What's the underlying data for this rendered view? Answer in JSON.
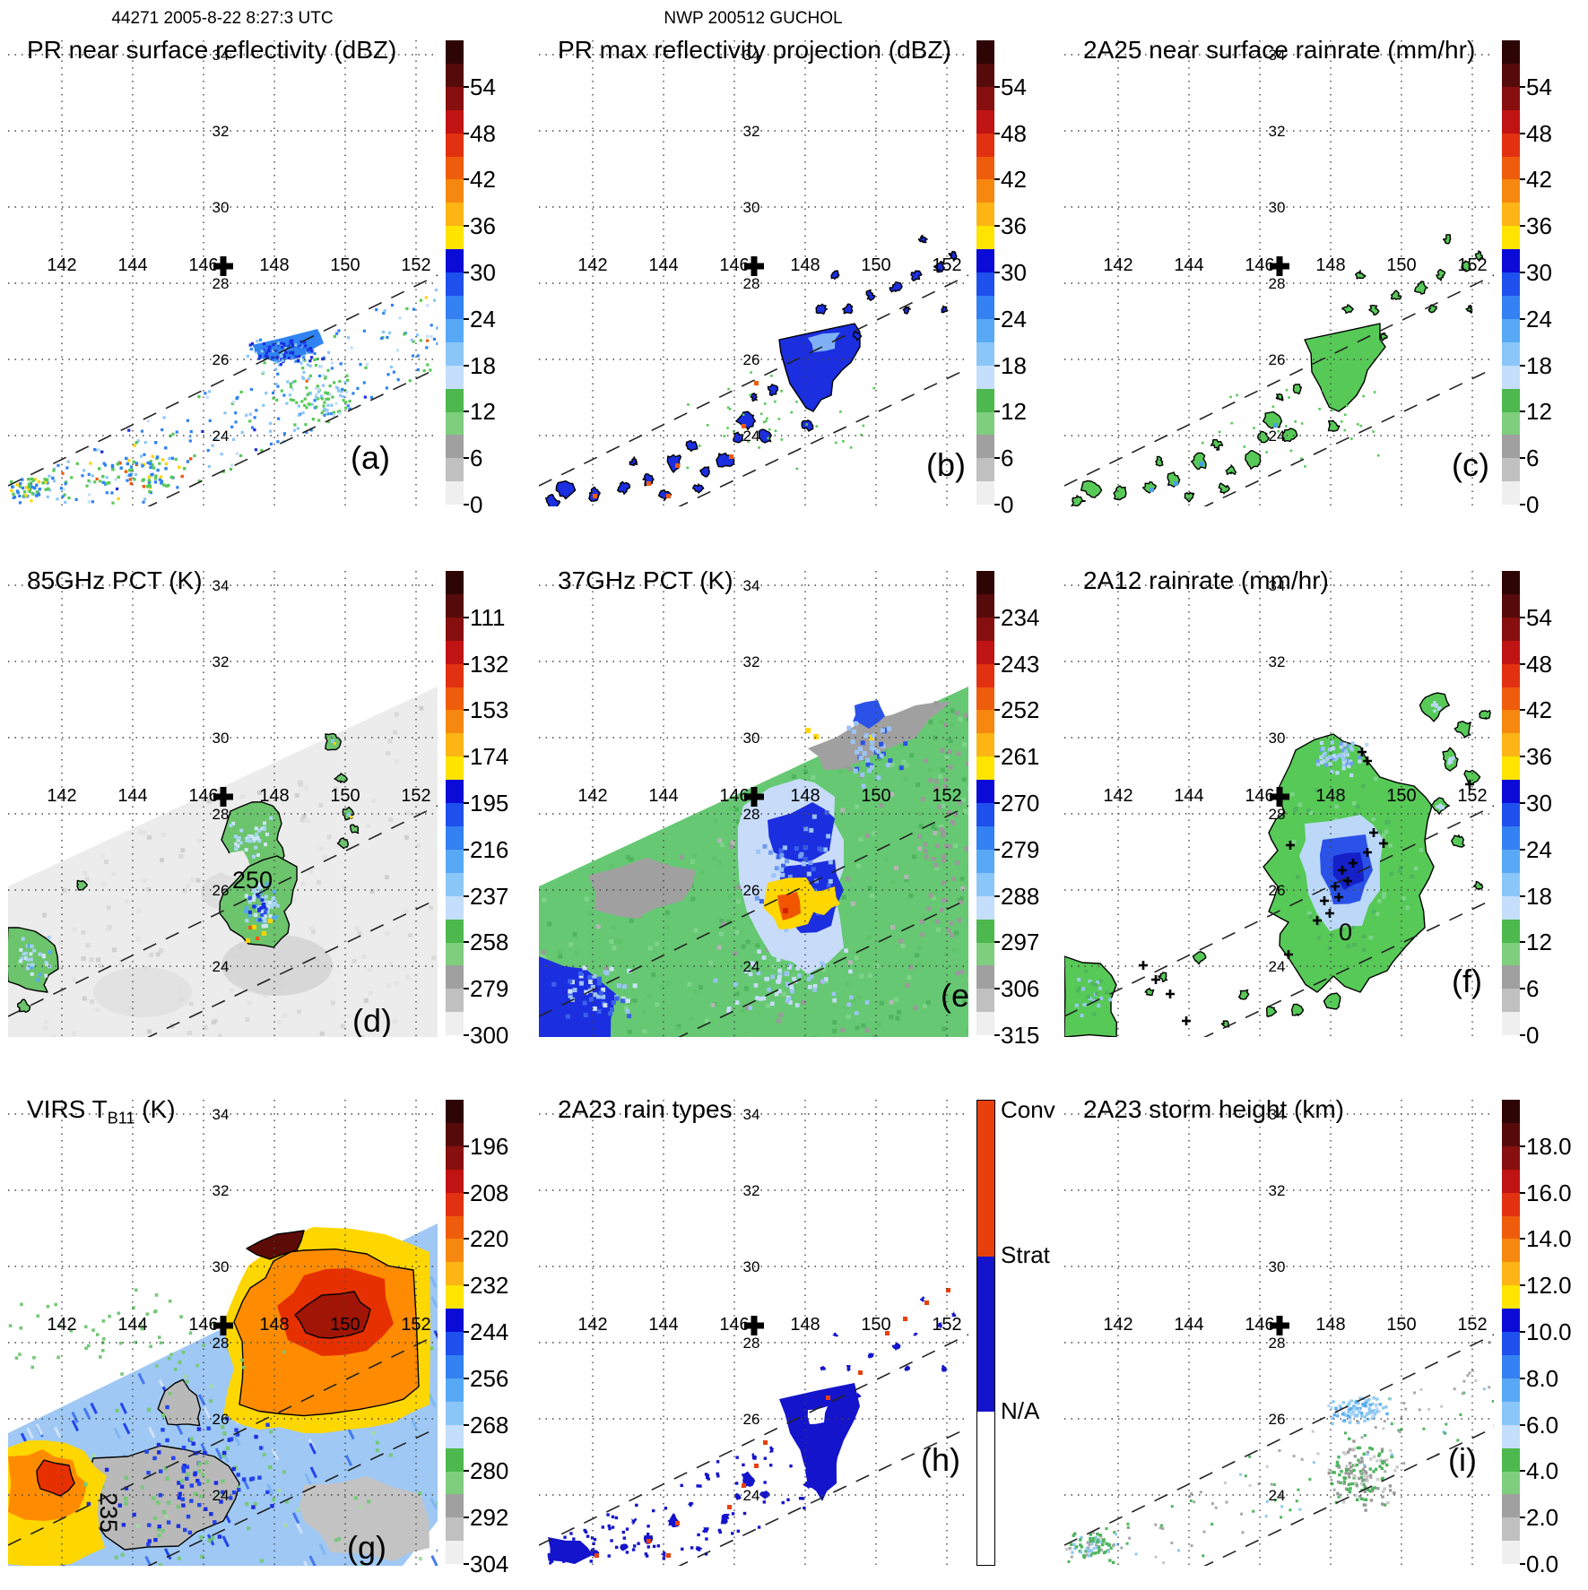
{
  "header": {
    "left": "44271 2005-8-22 8:27:3 UTC",
    "center": "NWP 200512 GUCHOL"
  },
  "geo": {
    "lon_labels": [
      "142",
      "144",
      "146",
      "148",
      "150",
      "152"
    ],
    "lat_labels": [
      "34",
      "32",
      "30",
      "28",
      "26",
      "24"
    ],
    "lon_range": [
      140.5,
      152.6
    ],
    "lat_range": [
      22.1,
      34.4
    ],
    "storm_center": {
      "lon": 146.6,
      "lat": 28.3
    },
    "swath_note": "two dashed lines mark PR swath edges"
  },
  "colors": {
    "grid": "#444444",
    "swath_line": "#222222",
    "conv": "#e8400c",
    "strat": "#1414cc",
    "na": "#ffffff",
    "palette": [
      "#2e0505",
      "#560b0b",
      "#870f0f",
      "#c01313",
      "#e23110",
      "#ef5c0c",
      "#f68810",
      "#fcb514",
      "#ffe400",
      "#0b0bd8",
      "#1e50ee",
      "#3381f2",
      "#57a9f6",
      "#8bc6f9",
      "#c4defb",
      "#4db84d",
      "#7ece7e",
      "#a0a0a0",
      "#c0c0c0",
      "#efefef"
    ],
    "art": {
      "deep_blue": "#1b2ee0",
      "blue": "#2f83f2",
      "light_blue": "#8ac6f9",
      "pale_blue": "#c4defb",
      "green": "#57c957",
      "mid_green": "#4eb45e",
      "light_green": "#7ed48a",
      "gray": "#a8a8a8",
      "light_gray": "#ececec",
      "mottle_gray": "#d8d8d8",
      "yellow": "#ffd400",
      "orange": "#f05a0a",
      "red": "#e63000",
      "dark_red": "#a01505",
      "maroon": "#5c0c04",
      "swath_green": "#66c873",
      "ir_base": "#9fc8f4",
      "ir_orange": "#ff8c00",
      "ir_yellow": "#ffd700"
    }
  },
  "chart_data": [
    {
      "id": "a",
      "letter": "(a)",
      "title": "PR near surface reflectivity (dBZ)",
      "type": "heatmap",
      "colorbar_ticks": [
        "54",
        "48",
        "42",
        "36",
        "30",
        "24",
        "18",
        "12",
        "6",
        "0"
      ]
    },
    {
      "id": "b",
      "letter": "(b)",
      "title": "PR max reflectivity projection (dBZ)",
      "type": "heatmap",
      "colorbar_ticks": [
        "54",
        "48",
        "42",
        "36",
        "30",
        "24",
        "18",
        "12",
        "6",
        "0"
      ]
    },
    {
      "id": "c",
      "letter": "(c)",
      "title": "2A25 near surface rainrate (mm/hr)",
      "type": "heatmap",
      "colorbar_ticks": [
        "54",
        "48",
        "42",
        "36",
        "30",
        "24",
        "18",
        "12",
        "6",
        "0"
      ]
    },
    {
      "id": "d",
      "letter": "(d)",
      "title": "85GHz PCT (K)",
      "type": "heatmap",
      "colorbar_ticks": [
        "111",
        "132",
        "153",
        "174",
        "195",
        "216",
        "237",
        "258",
        "279",
        "300"
      ],
      "contour_label": "250"
    },
    {
      "id": "e",
      "letter": "(e)",
      "title": "37GHz PCT (K)",
      "type": "heatmap",
      "colorbar_ticks": [
        "234",
        "243",
        "252",
        "261",
        "270",
        "279",
        "288",
        "297",
        "306",
        "315"
      ]
    },
    {
      "id": "f",
      "letter": "(f)",
      "title": "2A12 rainrate (mm/hr)",
      "type": "heatmap",
      "colorbar_ticks": [
        "54",
        "48",
        "42",
        "36",
        "30",
        "24",
        "18",
        "12",
        "6",
        "0"
      ],
      "contour_label": "0"
    },
    {
      "id": "g",
      "letter": "(g)",
      "title": "VIRS T_B11 (K)",
      "type": "heatmap",
      "title_parts": {
        "pre": "VIRS T",
        "sub": "B11",
        "post": " (K)"
      },
      "colorbar_ticks": [
        "196",
        "208",
        "220",
        "232",
        "244",
        "256",
        "268",
        "280",
        "292",
        "304"
      ],
      "contour_label": "235"
    },
    {
      "id": "h",
      "letter": "(h)",
      "title": "2A23 rain types",
      "type": "heatmap",
      "colorbar_categories": [
        "Conv",
        "Strat",
        "N/A"
      ]
    },
    {
      "id": "i",
      "letter": "(i)",
      "title": "2A23 storm height (km)",
      "type": "heatmap",
      "colorbar_ticks": [
        "18.0",
        "16.0",
        "14.0",
        "12.0",
        "10.0",
        "8.0",
        "6.0",
        "4.0",
        "2.0",
        "0.0"
      ]
    }
  ]
}
